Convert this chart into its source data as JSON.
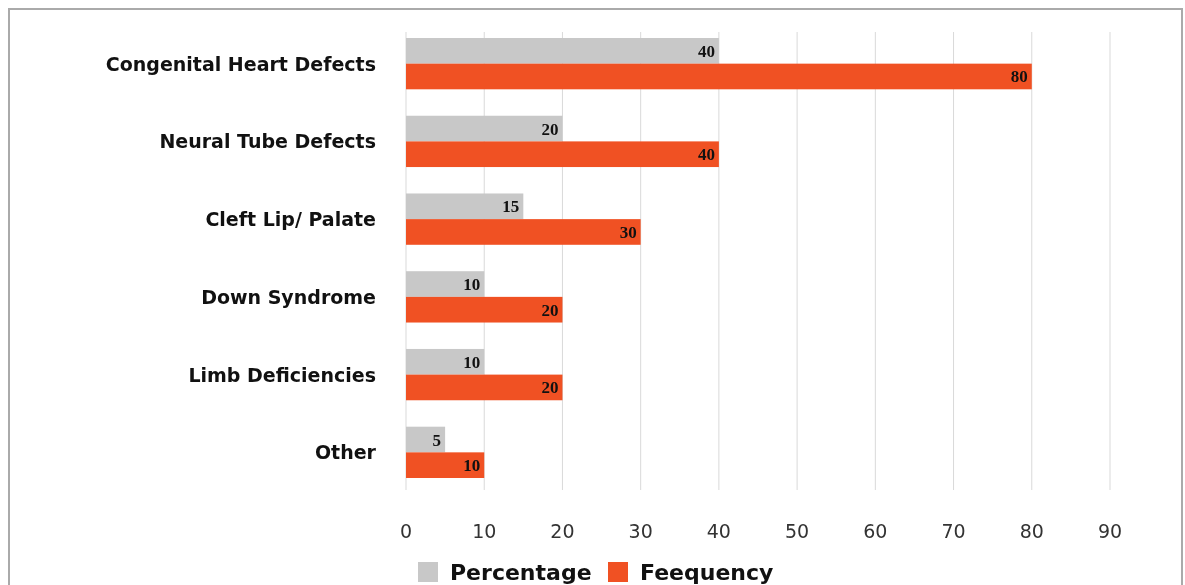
{
  "chart_data": {
    "type": "bar",
    "orientation": "horizontal",
    "categories": [
      "Congenital Heart Defects",
      "Neural Tube Defects",
      "Cleft Lip/ Palate",
      "Down Syndrome",
      "Limb Deficiencies",
      "Other"
    ],
    "series": [
      {
        "name": "Percentage",
        "color": "#c8c8c8",
        "values": [
          40,
          20,
          15,
          10,
          10,
          5
        ]
      },
      {
        "name": "Feequency",
        "color": "#f05123",
        "values": [
          80,
          40,
          30,
          20,
          20,
          10
        ]
      }
    ],
    "xlim": [
      0,
      90
    ],
    "xticks": [
      0,
      10,
      20,
      30,
      40,
      50,
      60,
      70,
      80,
      90
    ],
    "grid": "x",
    "legend": "bottom",
    "data_labels": true
  }
}
